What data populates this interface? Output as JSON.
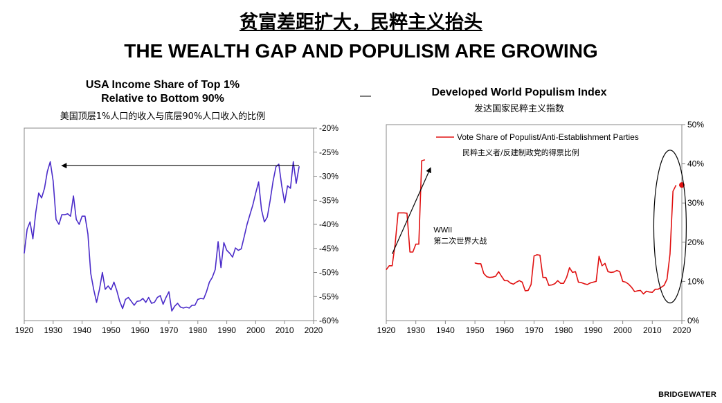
{
  "header": {
    "title_cn": "贫富差距扩大，民粹主义抬头",
    "title_en": "THE WEALTH GAP AND POPULISM ARE GROWING"
  },
  "separator": "—",
  "brand": "BRIDGEWATER",
  "colors": {
    "left_line": "#4A2BC9",
    "right_line": "#E01010",
    "axis": "#000000",
    "frame": "#888888"
  },
  "chart_data": [
    {
      "type": "line",
      "title": "USA Income Share of Top 1% Relative to Bottom 90%",
      "title_line1": "USA Income Share of Top 1%",
      "title_line2": "Relative to Bottom 90%",
      "subtitle_cn": "美国顶层1%人口的收入与底层90%人口收入的比例",
      "xlim": [
        1920,
        2020
      ],
      "ylim": [
        -60,
        -20
      ],
      "x_ticks": [
        1920,
        1930,
        1940,
        1950,
        1960,
        1970,
        1980,
        1990,
        2000,
        2010,
        2020
      ],
      "y_ticks": [
        -20,
        -25,
        -30,
        -35,
        -40,
        -45,
        -50,
        -55,
        -60
      ],
      "y_tick_suffix": "%",
      "y_axis_side": "right",
      "annotation_arrow": {
        "from": [
          2015,
          -27.8
        ],
        "to": [
          1933,
          -27.8
        ],
        "direction": "left"
      },
      "series": [
        {
          "name": "Top 1% / Bottom 90% income share",
          "x": [
            1920,
            1921,
            1922,
            1923,
            1924,
            1925,
            1926,
            1927,
            1928,
            1929,
            1930,
            1931,
            1932,
            1933,
            1934,
            1935,
            1936,
            1937,
            1938,
            1939,
            1940,
            1941,
            1942,
            1943,
            1944,
            1945,
            1946,
            1947,
            1948,
            1949,
            1950,
            1951,
            1952,
            1953,
            1954,
            1955,
            1956,
            1957,
            1958,
            1959,
            1960,
            1961,
            1962,
            1963,
            1964,
            1965,
            1966,
            1967,
            1968,
            1969,
            1970,
            1971,
            1972,
            1973,
            1974,
            1975,
            1976,
            1977,
            1978,
            1979,
            1980,
            1981,
            1982,
            1983,
            1984,
            1985,
            1986,
            1987,
            1988,
            1989,
            1990,
            1991,
            1992,
            1993,
            1994,
            1995,
            1996,
            1997,
            1998,
            1999,
            2000,
            2001,
            2002,
            2003,
            2004,
            2005,
            2006,
            2007,
            2008,
            2009,
            2010,
            2011,
            2012,
            2013,
            2014,
            2015
          ],
          "values": [
            -46,
            -41,
            -39.5,
            -43,
            -37.5,
            -33.5,
            -34.5,
            -32.5,
            -29,
            -27,
            -31,
            -39,
            -40,
            -38,
            -38,
            -37.8,
            -38.3,
            -34.1,
            -39,
            -40,
            -38.3,
            -38.3,
            -42,
            -50.2,
            -53.5,
            -56.2,
            -53.5,
            -50,
            -53.5,
            -52.8,
            -53.6,
            -52,
            -53.8,
            -56,
            -57.5,
            -55.6,
            -55.2,
            -56,
            -56.8,
            -56,
            -55.9,
            -55.4,
            -56.2,
            -55.2,
            -56.4,
            -56.2,
            -55.2,
            -54.8,
            -56.6,
            -55.2,
            -54,
            -58,
            -57,
            -56.4,
            -57.2,
            -57.4,
            -57.2,
            -57.4,
            -56.8,
            -56.8,
            -55.6,
            -55.4,
            -55.5,
            -54,
            -52,
            -51,
            -49.4,
            -43.6,
            -49,
            -43.8,
            -45.4,
            -46,
            -46.8,
            -44.9,
            -45.4,
            -45.1,
            -42.6,
            -40,
            -38,
            -36,
            -33.5,
            -31.2,
            -37,
            -39.5,
            -38.5,
            -35,
            -31,
            -28,
            -27.5,
            -32,
            -35.5,
            -32,
            -32.5,
            -27,
            -31.5,
            -28
          ]
        }
      ]
    },
    {
      "type": "line",
      "title": "Developed World Populism Index",
      "subtitle_cn": "发达国家民粹主义指数",
      "xlim": [
        1920,
        2020
      ],
      "ylim": [
        0,
        50
      ],
      "x_ticks": [
        1920,
        1930,
        1940,
        1950,
        1960,
        1970,
        1980,
        1990,
        2000,
        2010,
        2020
      ],
      "y_ticks": [
        0,
        10,
        20,
        30,
        40,
        50
      ],
      "y_tick_suffix": "%",
      "y_axis_side": "right",
      "legend": {
        "position": "top-left",
        "label_en": "Vote Share of Populist/Anti-Establishment Parties",
        "label_cn": "民粹主义者/反建制政党的得票比例"
      },
      "annotations": [
        {
          "text_en": "WWII",
          "text_cn": "第二次世界大战",
          "x": 1936,
          "y": 22.5
        },
        {
          "type": "arrow",
          "from": [
            1922,
            17
          ],
          "to": [
            1935,
            39
          ]
        },
        {
          "type": "ellipse",
          "center": [
            2016,
            24
          ],
          "rx_years": 5.5,
          "ry_percent": 19.5
        }
      ],
      "series": [
        {
          "name": "Vote Share of Populist/Anti-Establishment Parties",
          "segments": [
            {
              "x": [
                1920,
                1921,
                1922,
                1923,
                1924,
                1925,
                1926,
                1927,
                1928,
                1929,
                1930,
                1931,
                1932,
                1933
              ],
              "values": [
                13,
                14,
                14,
                19.5,
                27.5,
                27.5,
                27.5,
                27.4,
                17.5,
                17.5,
                19.5,
                19.5,
                40.8,
                41
              ]
            },
            {
              "x": [
                1950,
                1951,
                1952,
                1953,
                1954,
                1955,
                1956,
                1957,
                1958,
                1959,
                1960,
                1961,
                1962,
                1963,
                1964,
                1965,
                1966,
                1967,
                1968,
                1969,
                1970,
                1971,
                1972,
                1973,
                1974,
                1975,
                1976,
                1977,
                1978,
                1979,
                1980,
                1981,
                1982,
                1983,
                1984,
                1985,
                1986,
                1987,
                1988,
                1989,
                1990,
                1991,
                1992,
                1993,
                1994,
                1995,
                1996,
                1997,
                1998,
                1999,
                2000,
                2001,
                2002,
                2003,
                2004,
                2005,
                2006,
                2007,
                2008,
                2009,
                2010,
                2011,
                2012,
                2013,
                2014,
                2015,
                2016,
                2017,
                2018
              ],
              "values": [
                14.7,
                14.5,
                14.5,
                12,
                11.2,
                11,
                11.1,
                11.3,
                12.5,
                11.3,
                10.2,
                10.2,
                9.6,
                9.3,
                9.8,
                10.2,
                9.8,
                7.6,
                7.7,
                9.2,
                16.5,
                16.8,
                16.7,
                11,
                11,
                9,
                9.1,
                9.4,
                10.2,
                9.5,
                9.5,
                11,
                13.5,
                12.3,
                12.5,
                9.8,
                9.7,
                9.4,
                9.2,
                9.6,
                9.8,
                10,
                16.4,
                14,
                14.6,
                12.5,
                12.3,
                12.4,
                12.8,
                12.5,
                10,
                9.8,
                9.3,
                8.5,
                7.4,
                7.6,
                7.7,
                6.8,
                7.5,
                7.3,
                7.2,
                8,
                8,
                8.5,
                9,
                10.6,
                17,
                33,
                34.5
              ]
            }
          ],
          "marker": {
            "x": 2020,
            "value": 34.6
          }
        }
      ]
    }
  ]
}
